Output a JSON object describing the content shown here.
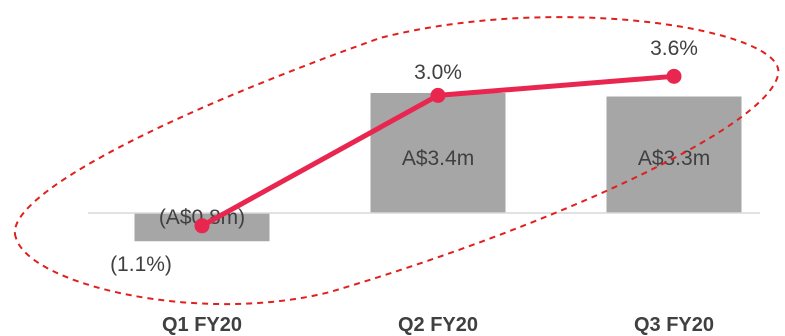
{
  "chart_data": {
    "type": "bar",
    "categories": [
      "Q1 FY20",
      "Q2 FY20",
      "Q3 FY20"
    ],
    "series": [
      {
        "type": "bar",
        "values": [
          -0.8,
          3.4,
          3.3
        ],
        "labels": [
          "(A$0.8m)",
          "A$3.4m",
          "A$3.3m"
        ],
        "color": "#a6a6a6"
      },
      {
        "type": "line",
        "values": [
          -1.1,
          3.0,
          3.6
        ],
        "labels": [
          "(1.1%)",
          "3.0%",
          "3.6%"
        ],
        "color": "#e8264f"
      }
    ],
    "title": "",
    "xlabel": "",
    "ylabel": "",
    "grid": false,
    "annotation": {
      "shape": "dashed-ellipse",
      "color": "#e0201e"
    }
  }
}
